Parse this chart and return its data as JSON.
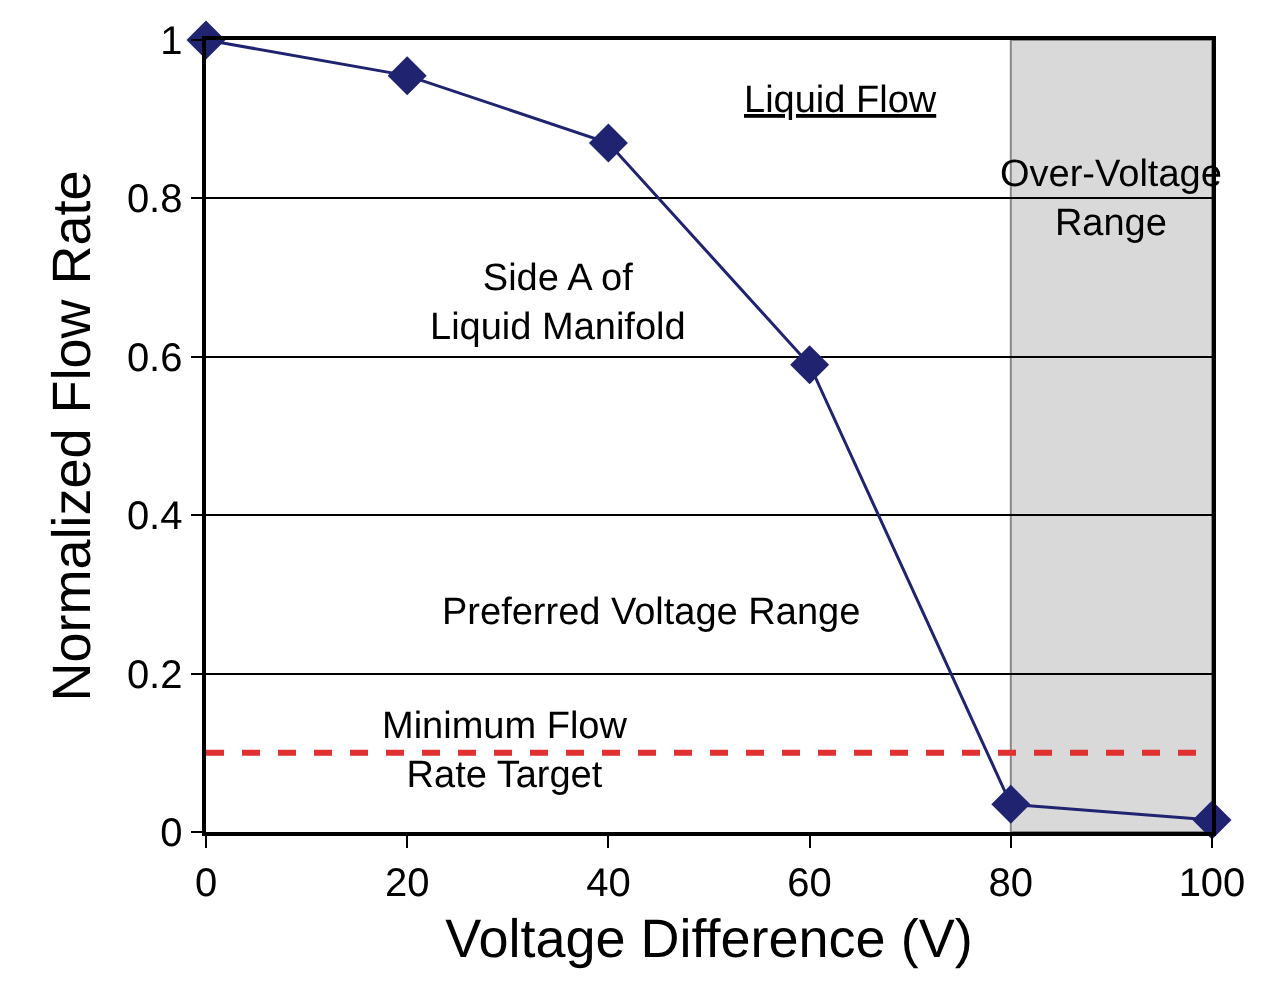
{
  "chart_data": {
    "type": "line",
    "xlabel": "Voltage Difference (V)",
    "ylabel": "Normalized Flow Rate",
    "x": [
      0,
      20,
      40,
      60,
      80,
      100
    ],
    "series": [
      {
        "color": "#1f2370",
        "values": [
          1.0,
          0.955,
          0.87,
          0.59,
          0.035,
          0.015
        ]
      }
    ],
    "xlim": [
      0,
      100
    ],
    "xticks": [
      0,
      20,
      40,
      60,
      80,
      100
    ],
    "ylim": [
      0,
      1
    ],
    "yticks": [
      0,
      0.2,
      0.4,
      0.6,
      0.8,
      1
    ],
    "grid": "y",
    "marker": "diamond",
    "line_style": "solid",
    "legend": false,
    "ref_lines": [
      {
        "axis": "y",
        "value": 0.1,
        "label": "Minimum Flow Rate Target",
        "color": "#e03030",
        "line_style": "dashed"
      }
    ],
    "bands": [
      {
        "axis": "x",
        "from": 80,
        "to": 100,
        "label": "Over-Voltage Range",
        "color": "#d9d9d9"
      }
    ],
    "annotations": [
      "Liquid Flow",
      "Side A of Liquid Manifold",
      "Preferred Voltage Range"
    ]
  }
}
